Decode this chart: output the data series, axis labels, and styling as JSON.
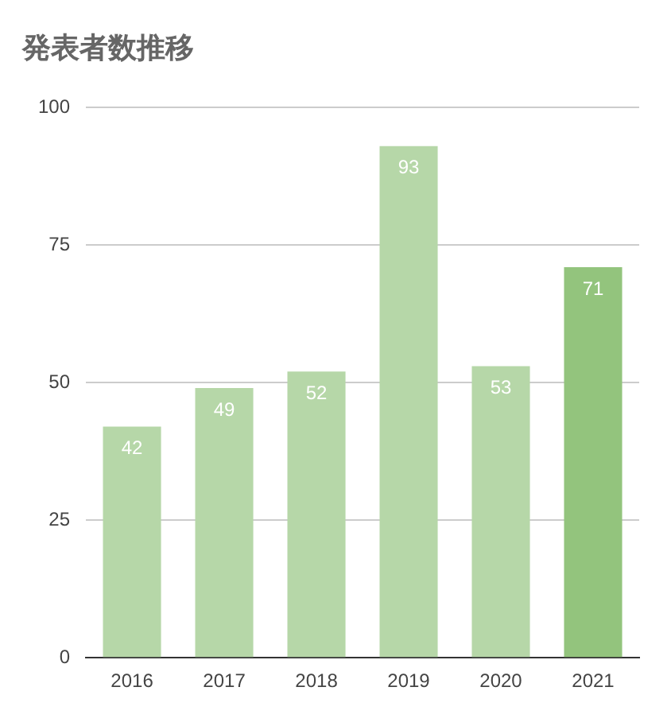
{
  "chart_data": {
    "type": "bar",
    "title": "発表者数推移",
    "categories": [
      "2016",
      "2017",
      "2018",
      "2019",
      "2020",
      "2021"
    ],
    "values": [
      42,
      49,
      52,
      93,
      53,
      71
    ],
    "colors": [
      "#b6d7a8",
      "#b6d7a8",
      "#b6d7a8",
      "#b6d7a8",
      "#b6d7a8",
      "#93c47d"
    ],
    "ylim": [
      0,
      100
    ],
    "yticks": [
      0,
      25,
      50,
      75,
      100
    ],
    "grid": "y",
    "data_labels": true
  }
}
